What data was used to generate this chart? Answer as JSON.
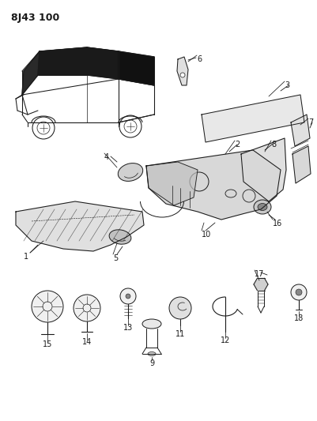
{
  "title": "8J43 100",
  "bg_color": "#ffffff",
  "line_color": "#1a1a1a",
  "fig_width": 4.01,
  "fig_height": 5.33,
  "dpi": 100
}
